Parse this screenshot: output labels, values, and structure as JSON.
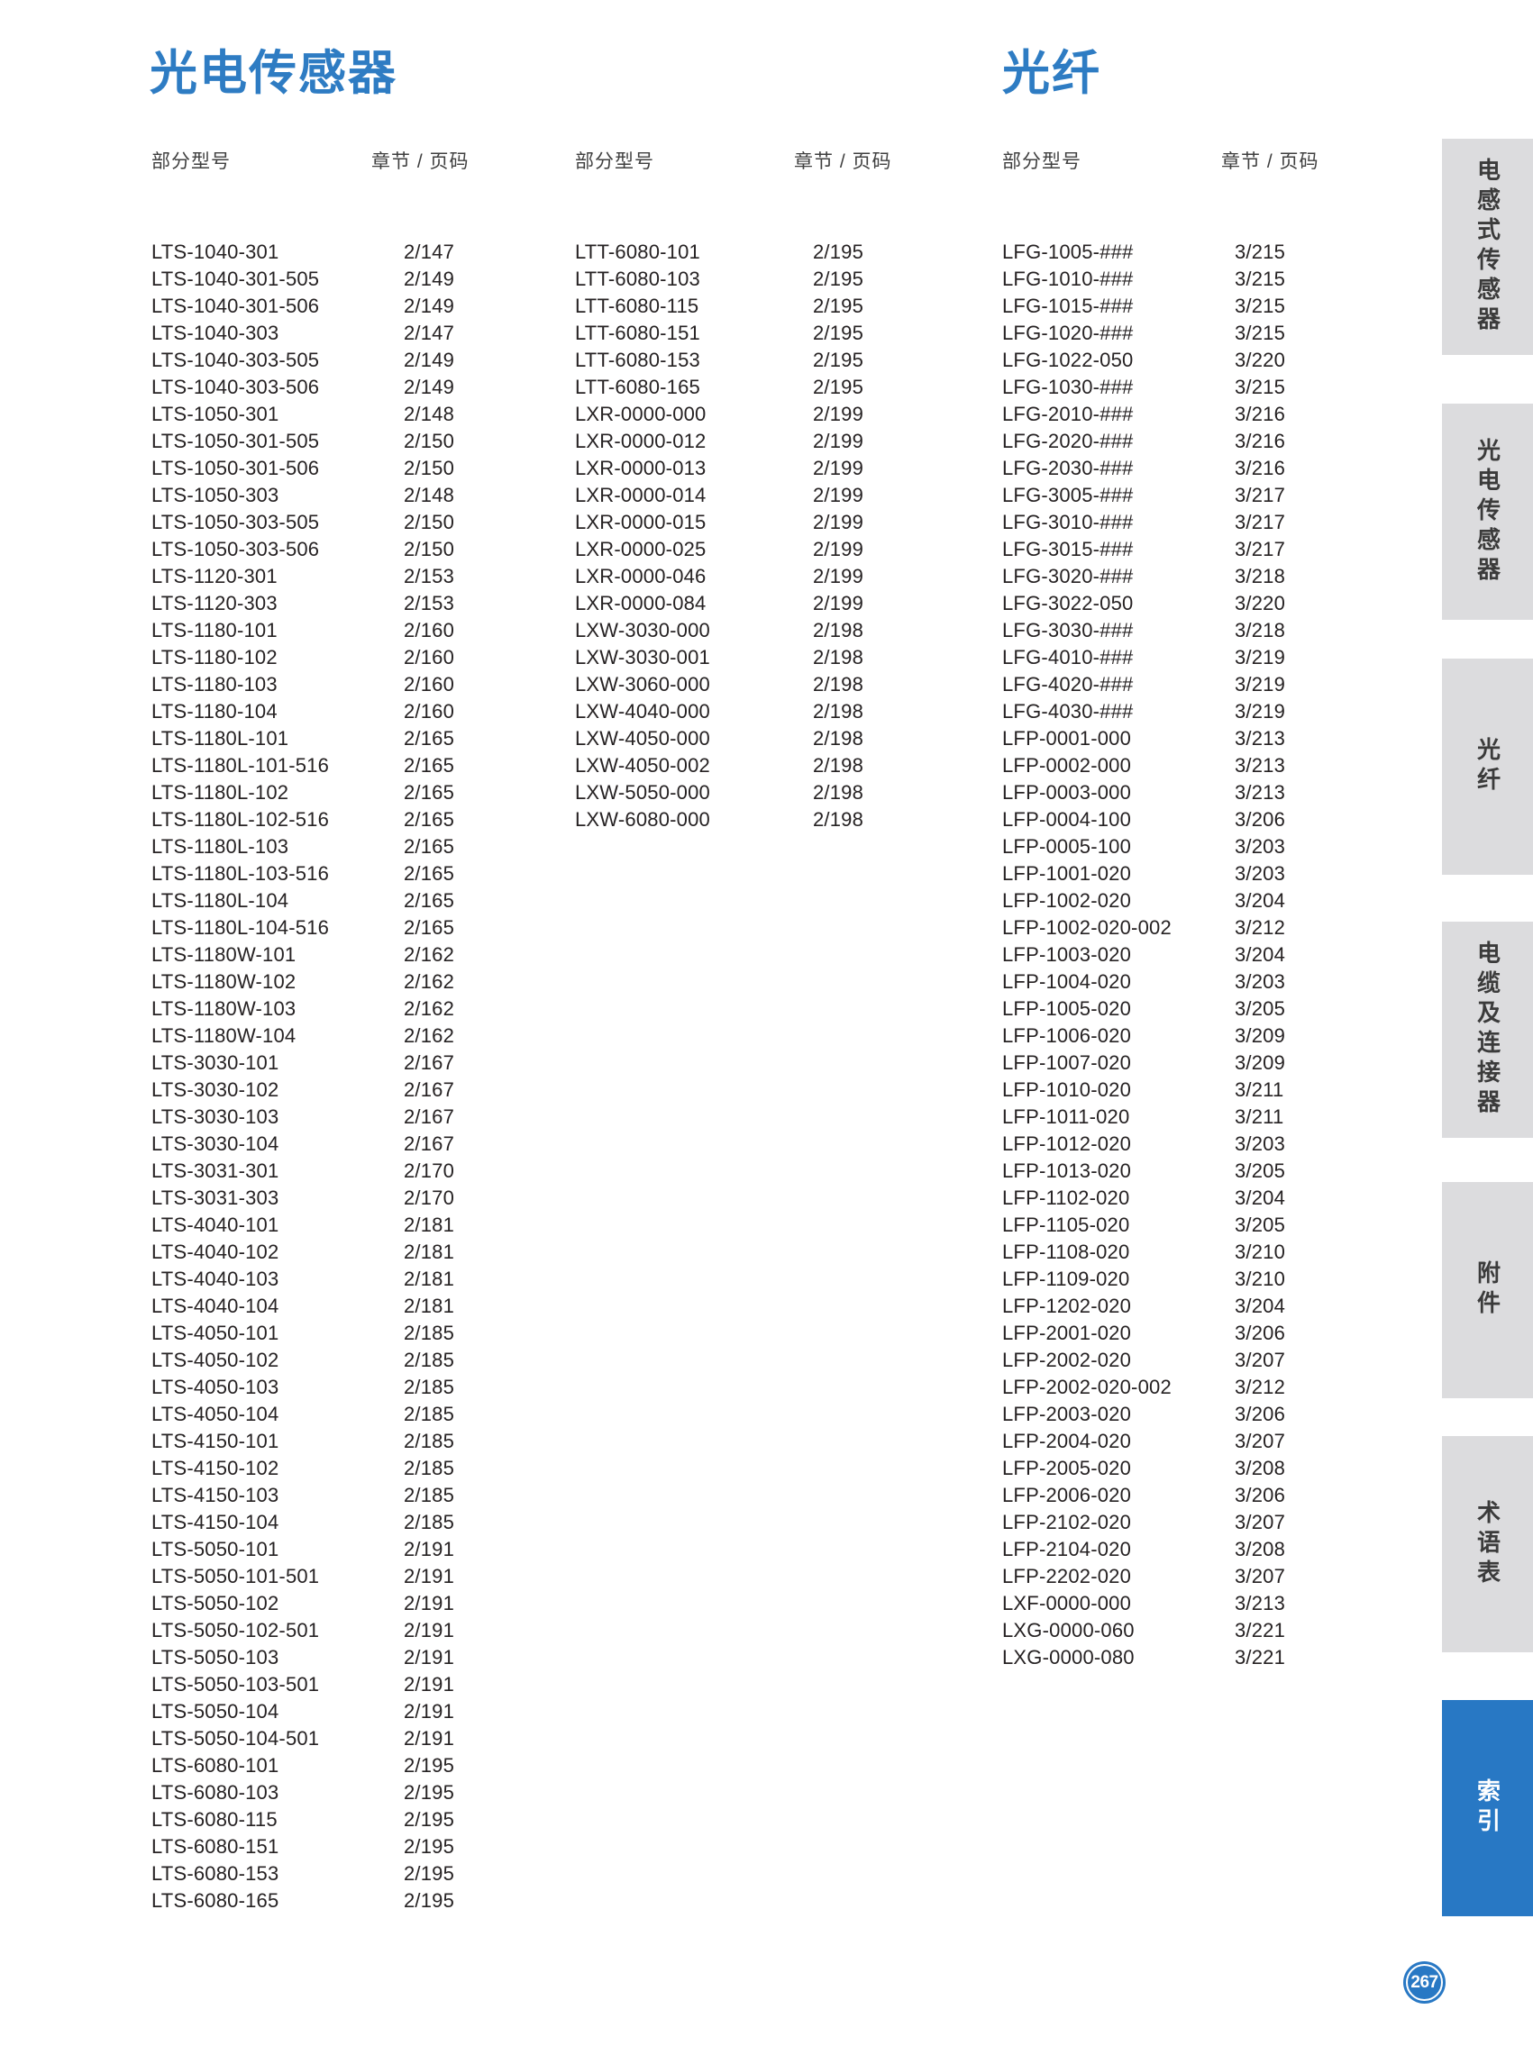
{
  "sections": {
    "left_title": "光电传感器",
    "right_title": "光纤"
  },
  "column_headers": {
    "part": "部分型号",
    "page": "章节 / 页码"
  },
  "columns": [
    {
      "entries": [
        {
          "model": "LTS-1040-301",
          "page": "2/147"
        },
        {
          "model": "LTS-1040-301-505",
          "page": "2/149"
        },
        {
          "model": "LTS-1040-301-506",
          "page": "2/149"
        },
        {
          "model": "LTS-1040-303",
          "page": "2/147"
        },
        {
          "model": "LTS-1040-303-505",
          "page": "2/149"
        },
        {
          "model": "LTS-1040-303-506",
          "page": "2/149"
        },
        {
          "model": "LTS-1050-301",
          "page": "2/148"
        },
        {
          "model": "LTS-1050-301-505",
          "page": "2/150"
        },
        {
          "model": "LTS-1050-301-506",
          "page": "2/150"
        },
        {
          "model": "LTS-1050-303",
          "page": "2/148"
        },
        {
          "model": "LTS-1050-303-505",
          "page": "2/150"
        },
        {
          "model": "LTS-1050-303-506",
          "page": "2/150"
        },
        {
          "model": "LTS-1120-301",
          "page": "2/153"
        },
        {
          "model": "LTS-1120-303",
          "page": "2/153"
        },
        {
          "model": "LTS-1180-101",
          "page": "2/160"
        },
        {
          "model": "LTS-1180-102",
          "page": "2/160"
        },
        {
          "model": "LTS-1180-103",
          "page": "2/160"
        },
        {
          "model": "LTS-1180-104",
          "page": "2/160"
        },
        {
          "model": "LTS-1180L-101",
          "page": "2/165"
        },
        {
          "model": "LTS-1180L-101-516",
          "page": "2/165"
        },
        {
          "model": "LTS-1180L-102",
          "page": "2/165"
        },
        {
          "model": "LTS-1180L-102-516",
          "page": "2/165"
        },
        {
          "model": "LTS-1180L-103",
          "page": "2/165"
        },
        {
          "model": "LTS-1180L-103-516",
          "page": "2/165"
        },
        {
          "model": "LTS-1180L-104",
          "page": "2/165"
        },
        {
          "model": "LTS-1180L-104-516",
          "page": "2/165"
        },
        {
          "model": "LTS-1180W-101",
          "page": "2/162"
        },
        {
          "model": "LTS-1180W-102",
          "page": "2/162"
        },
        {
          "model": "LTS-1180W-103",
          "page": "2/162"
        },
        {
          "model": "LTS-1180W-104",
          "page": "2/162"
        },
        {
          "model": "LTS-3030-101",
          "page": "2/167"
        },
        {
          "model": "LTS-3030-102",
          "page": "2/167"
        },
        {
          "model": "LTS-3030-103",
          "page": "2/167"
        },
        {
          "model": "LTS-3030-104",
          "page": "2/167"
        },
        {
          "model": "LTS-3031-301",
          "page": "2/170"
        },
        {
          "model": "LTS-3031-303",
          "page": "2/170"
        },
        {
          "model": "LTS-4040-101",
          "page": "2/181"
        },
        {
          "model": "LTS-4040-102",
          "page": "2/181"
        },
        {
          "model": "LTS-4040-103",
          "page": "2/181"
        },
        {
          "model": "LTS-4040-104",
          "page": "2/181"
        },
        {
          "model": "LTS-4050-101",
          "page": "2/185"
        },
        {
          "model": "LTS-4050-102",
          "page": "2/185"
        },
        {
          "model": "LTS-4050-103",
          "page": "2/185"
        },
        {
          "model": "LTS-4050-104",
          "page": "2/185"
        },
        {
          "model": "LTS-4150-101",
          "page": "2/185"
        },
        {
          "model": "LTS-4150-102",
          "page": "2/185"
        },
        {
          "model": "LTS-4150-103",
          "page": "2/185"
        },
        {
          "model": "LTS-4150-104",
          "page": "2/185"
        },
        {
          "model": "LTS-5050-101",
          "page": "2/191"
        },
        {
          "model": "LTS-5050-101-501",
          "page": "2/191"
        },
        {
          "model": "LTS-5050-102",
          "page": "2/191"
        },
        {
          "model": "LTS-5050-102-501",
          "page": "2/191"
        },
        {
          "model": "LTS-5050-103",
          "page": "2/191"
        },
        {
          "model": "LTS-5050-103-501",
          "page": "2/191"
        },
        {
          "model": "LTS-5050-104",
          "page": "2/191"
        },
        {
          "model": "LTS-5050-104-501",
          "page": "2/191"
        },
        {
          "model": "LTS-6080-101",
          "page": "2/195"
        },
        {
          "model": "LTS-6080-103",
          "page": "2/195"
        },
        {
          "model": "LTS-6080-115",
          "page": "2/195"
        },
        {
          "model": "LTS-6080-151",
          "page": "2/195"
        },
        {
          "model": "LTS-6080-153",
          "page": "2/195"
        },
        {
          "model": "LTS-6080-165",
          "page": "2/195"
        }
      ]
    },
    {
      "entries": [
        {
          "model": "LTT-6080-101",
          "page": "2/195"
        },
        {
          "model": "LTT-6080-103",
          "page": "2/195"
        },
        {
          "model": "LTT-6080-115",
          "page": "2/195"
        },
        {
          "model": "LTT-6080-151",
          "page": "2/195"
        },
        {
          "model": "LTT-6080-153",
          "page": "2/195"
        },
        {
          "model": "LTT-6080-165",
          "page": "2/195"
        },
        {
          "model": "LXR-0000-000",
          "page": "2/199"
        },
        {
          "model": "LXR-0000-012",
          "page": "2/199"
        },
        {
          "model": "LXR-0000-013",
          "page": "2/199"
        },
        {
          "model": "LXR-0000-014",
          "page": "2/199"
        },
        {
          "model": "LXR-0000-015",
          "page": "2/199"
        },
        {
          "model": "LXR-0000-025",
          "page": "2/199"
        },
        {
          "model": "LXR-0000-046",
          "page": "2/199"
        },
        {
          "model": "LXR-0000-084",
          "page": "2/199"
        },
        {
          "model": "LXW-3030-000",
          "page": "2/198"
        },
        {
          "model": "LXW-3030-001",
          "page": "2/198"
        },
        {
          "model": "LXW-3060-000",
          "page": "2/198"
        },
        {
          "model": "LXW-4040-000",
          "page": "2/198"
        },
        {
          "model": "LXW-4050-000",
          "page": "2/198"
        },
        {
          "model": "LXW-4050-002",
          "page": "2/198"
        },
        {
          "model": "LXW-5050-000",
          "page": "2/198"
        },
        {
          "model": "LXW-6080-000",
          "page": "2/198"
        }
      ]
    },
    {
      "entries": [
        {
          "model": "LFG-1005-###",
          "page": "3/215"
        },
        {
          "model": "LFG-1010-###",
          "page": "3/215"
        },
        {
          "model": "LFG-1015-###",
          "page": "3/215"
        },
        {
          "model": "LFG-1020-###",
          "page": "3/215"
        },
        {
          "model": "LFG-1022-050",
          "page": "3/220"
        },
        {
          "model": "LFG-1030-###",
          "page": "3/215"
        },
        {
          "model": "LFG-2010-###",
          "page": "3/216"
        },
        {
          "model": "LFG-2020-###",
          "page": "3/216"
        },
        {
          "model": "LFG-2030-###",
          "page": "3/216"
        },
        {
          "model": "LFG-3005-###",
          "page": "3/217"
        },
        {
          "model": "LFG-3010-###",
          "page": "3/217"
        },
        {
          "model": "LFG-3015-###",
          "page": "3/217"
        },
        {
          "model": "LFG-3020-###",
          "page": "3/218"
        },
        {
          "model": "LFG-3022-050",
          "page": "3/220"
        },
        {
          "model": "LFG-3030-###",
          "page": "3/218"
        },
        {
          "model": "LFG-4010-###",
          "page": "3/219"
        },
        {
          "model": "LFG-4020-###",
          "page": "3/219"
        },
        {
          "model": "LFG-4030-###",
          "page": "3/219"
        },
        {
          "model": "LFP-0001-000",
          "page": "3/213"
        },
        {
          "model": "LFP-0002-000",
          "page": "3/213"
        },
        {
          "model": "LFP-0003-000",
          "page": "3/213"
        },
        {
          "model": "LFP-0004-100",
          "page": "3/206"
        },
        {
          "model": "LFP-0005-100",
          "page": "3/203"
        },
        {
          "model": "LFP-1001-020",
          "page": "3/203"
        },
        {
          "model": "LFP-1002-020",
          "page": "3/204"
        },
        {
          "model": "LFP-1002-020-002",
          "page": "3/212"
        },
        {
          "model": "LFP-1003-020",
          "page": "3/204"
        },
        {
          "model": "LFP-1004-020",
          "page": "3/203"
        },
        {
          "model": "LFP-1005-020",
          "page": "3/205"
        },
        {
          "model": "LFP-1006-020",
          "page": "3/209"
        },
        {
          "model": "LFP-1007-020",
          "page": "3/209"
        },
        {
          "model": "LFP-1010-020",
          "page": "3/211"
        },
        {
          "model": "LFP-1011-020",
          "page": "3/211"
        },
        {
          "model": "LFP-1012-020",
          "page": "3/203"
        },
        {
          "model": "LFP-1013-020",
          "page": "3/205"
        },
        {
          "model": "LFP-1102-020",
          "page": "3/204"
        },
        {
          "model": "LFP-1105-020",
          "page": "3/205"
        },
        {
          "model": "LFP-1108-020",
          "page": "3/210"
        },
        {
          "model": "LFP-1109-020",
          "page": "3/210"
        },
        {
          "model": "LFP-1202-020",
          "page": "3/204"
        },
        {
          "model": "LFP-2001-020",
          "page": "3/206"
        },
        {
          "model": "LFP-2002-020",
          "page": "3/207"
        },
        {
          "model": "LFP-2002-020-002",
          "page": "3/212"
        },
        {
          "model": "LFP-2003-020",
          "page": "3/206"
        },
        {
          "model": "LFP-2004-020",
          "page": "3/207"
        },
        {
          "model": "LFP-2005-020",
          "page": "3/208"
        },
        {
          "model": "LFP-2006-020",
          "page": "3/206"
        },
        {
          "model": "LFP-2102-020",
          "page": "3/207"
        },
        {
          "model": "LFP-2104-020",
          "page": "3/208"
        },
        {
          "model": "LFP-2202-020",
          "page": "3/207"
        },
        {
          "model": "LXF-0000-000",
          "page": "3/213"
        },
        {
          "model": "LXG-0000-060",
          "page": "3/221"
        },
        {
          "model": "LXG-0000-080",
          "page": "3/221"
        }
      ]
    }
  ],
  "sidebar": {
    "tabs": [
      {
        "id": "inductive-sensors",
        "label": "电感式传感器",
        "active": false
      },
      {
        "id": "photoelectric-sensors",
        "label": "光电传感器",
        "active": false
      },
      {
        "id": "fiber-optics",
        "label": "光纤",
        "active": false
      },
      {
        "id": "cables-connectors",
        "label": "电缆及连接器",
        "active": false
      },
      {
        "id": "accessories",
        "label": "附件",
        "active": false
      },
      {
        "id": "glossary",
        "label": "术语表",
        "active": false
      },
      {
        "id": "index",
        "label": "索引",
        "active": true
      }
    ]
  },
  "page_number": "267",
  "colors": {
    "accent_blue": "#2878c4",
    "title_blue": "#2e7cc3",
    "tab_gray": "#dcdcde",
    "text_dark": "#262223"
  }
}
